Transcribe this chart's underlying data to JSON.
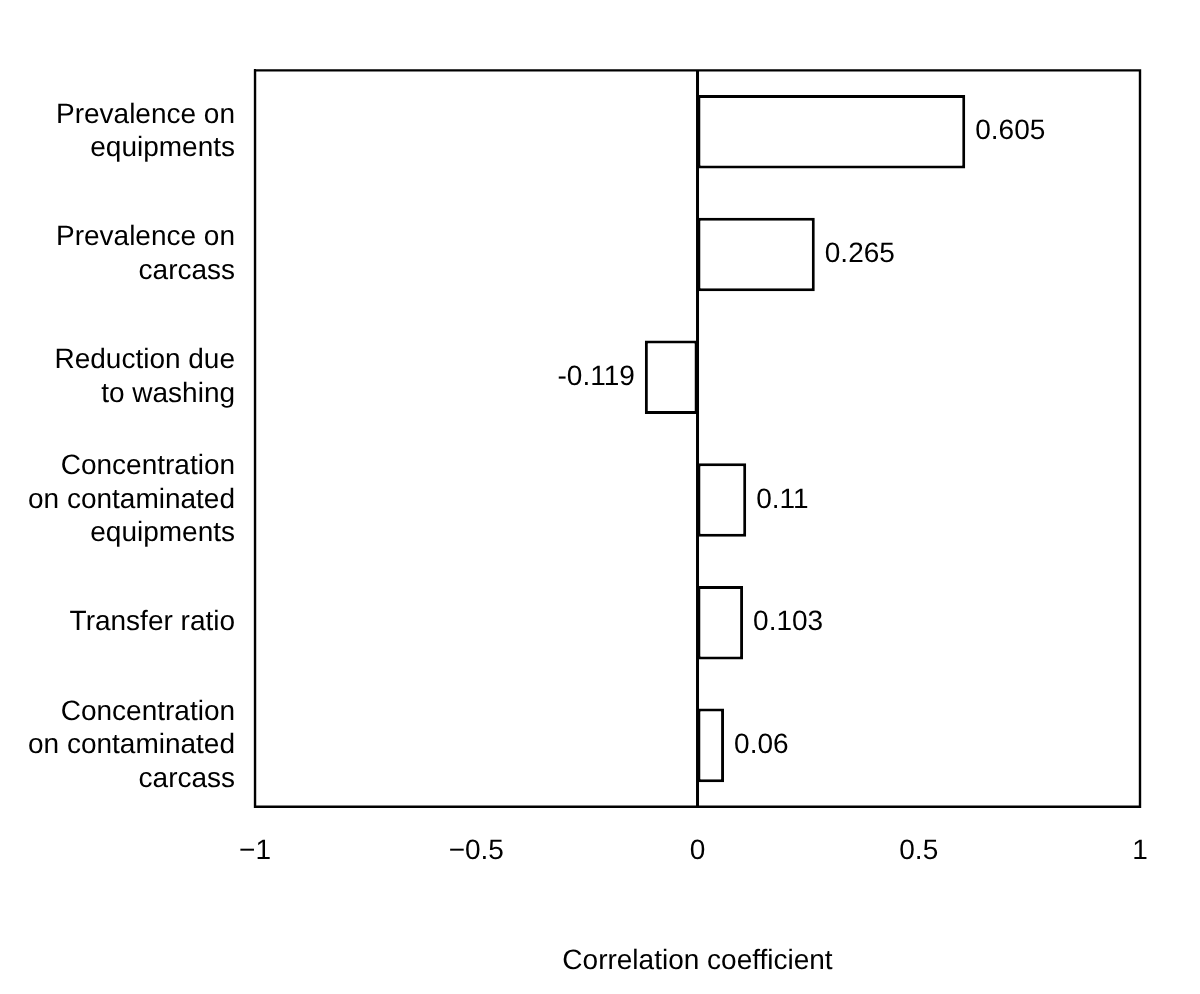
{
  "chart_data": {
    "type": "bar",
    "orientation": "horizontal",
    "xlabel": "Correlation coefficient",
    "categories": [
      "Prevalence on equipments",
      "Prevalence on carcass",
      "Reduction due to washing",
      "Concentration on contaminated equipments",
      "Transfer ratio",
      "Concentration on contaminated carcass"
    ],
    "values": [
      0.605,
      0.265,
      -0.119,
      0.11,
      0.103,
      0.06
    ],
    "color": "#ffffff",
    "xlim": [
      -1,
      1
    ],
    "xticks": [
      -1,
      -0.5,
      0,
      0.5,
      1
    ],
    "ref_lines": [
      {
        "axis": "x",
        "value": 0,
        "color": "#000000"
      }
    ],
    "grid": false,
    "legend": false,
    "data_labels": true
  }
}
